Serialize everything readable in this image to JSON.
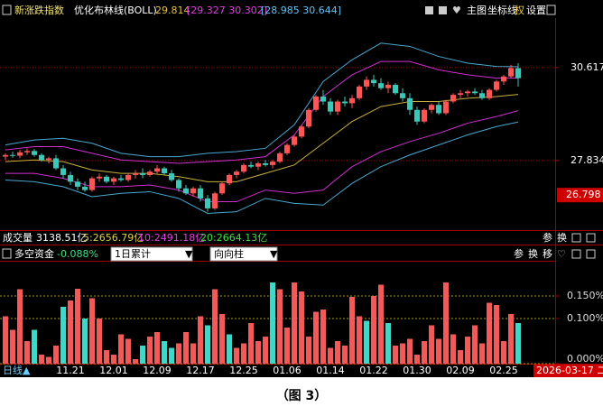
{
  "chart_data": [
    {
      "type": "candlestick",
      "title": "新涨跌指数",
      "indicator": "优化布林线(BOLL)",
      "boll_mid": 29.814,
      "boll_inner": "[29.327 30.302]",
      "boll_outer": "[28.985 30.644]",
      "categories": [
        null,
        null,
        null,
        null,
        null,
        null,
        null,
        null,
        null,
        "11.21",
        null,
        null,
        null,
        null,
        null,
        "12.01",
        null,
        null,
        null,
        null,
        null,
        "12.09",
        null,
        null,
        null,
        null,
        null,
        "12.17",
        null,
        null,
        null,
        null,
        null,
        "12.25",
        null,
        null,
        null,
        null,
        null,
        "01.06",
        null,
        null,
        null,
        null,
        null,
        "01.14",
        null,
        null,
        null,
        null,
        null,
        "01.22",
        null,
        null,
        null,
        null,
        null,
        "01.30",
        null,
        null,
        null,
        null,
        null,
        "02.09",
        null,
        null,
        null,
        null,
        null,
        "02.25",
        null,
        null
      ],
      "open": [
        27.95,
        28.0,
        27.98,
        28.08,
        28.12,
        28.0,
        27.85,
        27.9,
        27.6,
        27.4,
        27.2,
        27.05,
        26.95,
        27.3,
        27.35,
        27.2,
        27.3,
        27.25,
        27.4,
        27.45,
        27.4,
        27.5,
        27.6,
        27.45,
        27.25,
        27.0,
        26.85,
        27.0,
        26.7,
        26.4,
        26.85,
        27.15,
        27.4,
        27.5,
        27.7,
        27.65,
        27.75,
        27.7,
        27.8,
        28.05,
        28.3,
        28.55,
        28.85,
        29.35,
        29.75,
        29.6,
        29.3,
        29.6,
        29.55,
        29.7,
        30.05,
        30.25,
        30.15,
        30.0,
        30.1,
        29.85,
        29.7,
        29.35,
        29.0,
        29.35,
        29.5,
        29.25,
        29.6,
        29.8,
        29.85,
        29.9,
        29.85,
        29.7,
        29.95,
        30.2,
        30.35,
        30.6
      ],
      "high": [
        28.05,
        28.1,
        28.15,
        28.2,
        28.18,
        28.05,
        27.95,
        28.0,
        27.7,
        27.5,
        27.3,
        27.2,
        27.35,
        27.45,
        27.4,
        27.35,
        27.4,
        27.45,
        27.55,
        27.6,
        27.55,
        27.7,
        27.65,
        27.55,
        27.3,
        27.1,
        27.05,
        27.1,
        26.8,
        26.9,
        27.2,
        27.45,
        27.55,
        27.75,
        27.8,
        27.8,
        27.85,
        27.85,
        28.1,
        28.35,
        28.6,
        28.9,
        29.4,
        29.8,
        29.95,
        29.7,
        29.65,
        29.75,
        29.8,
        30.1,
        30.35,
        30.4,
        30.3,
        30.2,
        30.15,
        30.0,
        29.85,
        29.45,
        29.4,
        29.55,
        29.6,
        29.65,
        29.85,
        29.95,
        29.95,
        30.0,
        29.95,
        30.0,
        30.25,
        30.4,
        30.7,
        30.75
      ],
      "low": [
        27.85,
        27.92,
        27.9,
        28.0,
        27.95,
        27.8,
        27.75,
        27.55,
        27.3,
        27.1,
        26.95,
        26.9,
        26.9,
        27.2,
        27.15,
        27.1,
        27.2,
        27.2,
        27.3,
        27.3,
        27.35,
        27.45,
        27.4,
        27.2,
        26.9,
        26.8,
        26.75,
        26.6,
        26.3,
        26.35,
        26.8,
        27.1,
        27.3,
        27.45,
        27.6,
        27.55,
        27.65,
        27.6,
        27.75,
        28.0,
        28.25,
        28.5,
        28.8,
        29.3,
        29.5,
        29.2,
        29.2,
        29.45,
        29.4,
        29.65,
        29.95,
        30.05,
        29.95,
        29.85,
        29.8,
        29.6,
        29.2,
        28.9,
        28.95,
        29.25,
        29.2,
        29.2,
        29.55,
        29.7,
        29.75,
        29.8,
        29.65,
        29.65,
        29.9,
        30.1,
        30.3,
        30.05
      ],
      "close": [
        28.0,
        27.98,
        28.08,
        28.12,
        28.0,
        27.85,
        27.9,
        27.6,
        27.4,
        27.2,
        27.05,
        26.95,
        27.3,
        27.35,
        27.2,
        27.3,
        27.25,
        27.4,
        27.45,
        27.4,
        27.5,
        27.6,
        27.45,
        27.25,
        27.0,
        26.85,
        27.0,
        26.7,
        26.4,
        26.85,
        27.15,
        27.4,
        27.5,
        27.7,
        27.65,
        27.75,
        27.7,
        27.8,
        28.05,
        28.3,
        28.55,
        28.85,
        29.35,
        29.75,
        29.6,
        29.3,
        29.6,
        29.55,
        29.7,
        30.05,
        30.25,
        30.15,
        30.0,
        30.1,
        29.85,
        29.7,
        29.35,
        29.0,
        29.35,
        29.5,
        29.25,
        29.6,
        29.8,
        29.85,
        29.9,
        29.85,
        29.7,
        29.95,
        30.2,
        30.35,
        30.6,
        30.3
      ],
      "up_color": "#ff5555",
      "down_color": "#3cc8b8",
      "band_x": [
        0,
        4,
        8,
        12,
        16,
        20,
        24,
        28,
        32,
        36,
        40,
        44,
        48,
        52,
        56,
        60,
        64,
        68,
        71
      ],
      "band_series": [
        {
          "color": "#4aa8d0",
          "values": [
            28.3,
            28.45,
            28.5,
            28.35,
            28.05,
            27.95,
            27.95,
            28.05,
            28.1,
            28.2,
            28.9,
            30.2,
            30.85,
            31.35,
            31.25,
            30.95,
            30.75,
            30.65,
            30.644
          ]
        },
        {
          "color": "#d030d0",
          "values": [
            28.15,
            28.25,
            28.25,
            28.05,
            27.85,
            27.8,
            27.75,
            27.8,
            27.85,
            27.95,
            28.6,
            29.75,
            30.4,
            30.8,
            30.8,
            30.55,
            30.4,
            30.3,
            30.302
          ]
        },
        {
          "color": "#c8b040",
          "values": [
            27.8,
            27.85,
            27.8,
            27.55,
            27.45,
            27.45,
            27.35,
            27.2,
            27.2,
            27.45,
            27.7,
            28.35,
            29.0,
            29.45,
            29.6,
            29.6,
            29.7,
            29.75,
            29.814
          ]
        },
        {
          "color": "#d030d0",
          "values": [
            27.45,
            27.45,
            27.3,
            27.05,
            27.05,
            27.1,
            26.95,
            26.6,
            26.6,
            26.95,
            26.85,
            26.95,
            27.65,
            28.1,
            28.4,
            28.65,
            28.95,
            29.15,
            29.327
          ]
        },
        {
          "color": "#4aa8d0",
          "values": [
            27.25,
            27.2,
            27.05,
            26.75,
            26.85,
            26.9,
            26.7,
            26.25,
            26.3,
            26.7,
            26.55,
            26.5,
            27.15,
            27.65,
            28.0,
            28.3,
            28.6,
            28.85,
            28.985
          ]
        }
      ],
      "ylim": [
        25.75,
        32.1
      ],
      "yticks": [
        30.617,
        27.834
      ],
      "grid": true,
      "cursor_value": 26.798
    },
    {
      "type": "bar",
      "title": "多空资金",
      "title_value": "-0.088%",
      "series": [
        {
          "color": "#f25a5a",
          "values": [
            0.105,
            0.075,
            0.165,
            0.05,
            null,
            0.02,
            0.015,
            0.04,
            null,
            0.14,
            0.166,
            null,
            0.145,
            0.1,
            0.03,
            0.02,
            0.065,
            0.055,
            0.01,
            null,
            0.06,
            0.07,
            null,
            null,
            0.045,
            0.07,
            0.045,
            0.105,
            null,
            0.165,
            0.11,
            null,
            0.035,
            0.045,
            0.09,
            0.05,
            0.06,
            null,
            0.165,
            0.08,
            0.18,
            0.16,
            0.06,
            0.115,
            0.12,
            0.035,
            0.05,
            0.04,
            0.148,
            0.105,
            null,
            0.15,
            0.175,
            null,
            0.04,
            0.045,
            0.055,
            0.02,
            0.05,
            0.085,
            0.055,
            0.18,
            0.065,
            0.03,
            0.06,
            0.085,
            0.045,
            0.135,
            0.13,
            0.05,
            0.11,
            null
          ]
        },
        {
          "color": "#3cd8c8",
          "values": [
            null,
            null,
            null,
            null,
            0.075,
            null,
            null,
            null,
            0.126,
            null,
            null,
            0.1,
            null,
            null,
            null,
            null,
            null,
            null,
            null,
            0.04,
            null,
            null,
            0.05,
            0.035,
            null,
            null,
            null,
            null,
            0.085,
            null,
            null,
            0.065,
            null,
            null,
            null,
            null,
            null,
            0.18,
            null,
            null,
            null,
            null,
            null,
            null,
            null,
            null,
            null,
            null,
            null,
            null,
            0.095,
            null,
            null,
            0.09,
            null,
            null,
            null,
            null,
            null,
            null,
            null,
            null,
            null,
            null,
            null,
            null,
            null,
            null,
            null,
            null,
            null,
            0.09
          ]
        }
      ],
      "ylim": [
        0,
        0.226
      ],
      "yticks": [
        {
          "value": 0,
          "label": "0.000%"
        },
        {
          "value": 0.1,
          "label": "0.100%"
        },
        {
          "value": 0.15,
          "label": "0.150%"
        }
      ],
      "grid": true,
      "dropdowns": [
        "1日累计",
        "向向柱"
      ]
    }
  ],
  "toolbar": {
    "main": "主图",
    "coord": "坐标线",
    "right": "权",
    "settings": "设置"
  },
  "volume_row": {
    "label": "成交量",
    "value": "3138.51亿",
    "ma5": "5:2656.79亿",
    "ma10": "10:2491.18亿",
    "ma20": "20:2664.13亿",
    "param": "参",
    "swap": "换"
  },
  "fund_row": {
    "param": "参",
    "swap": "换",
    "move": "移"
  },
  "x_axis_prefix": "日线▲",
  "cursor_date": "2026-03-17 二",
  "caption": "（图 3）"
}
